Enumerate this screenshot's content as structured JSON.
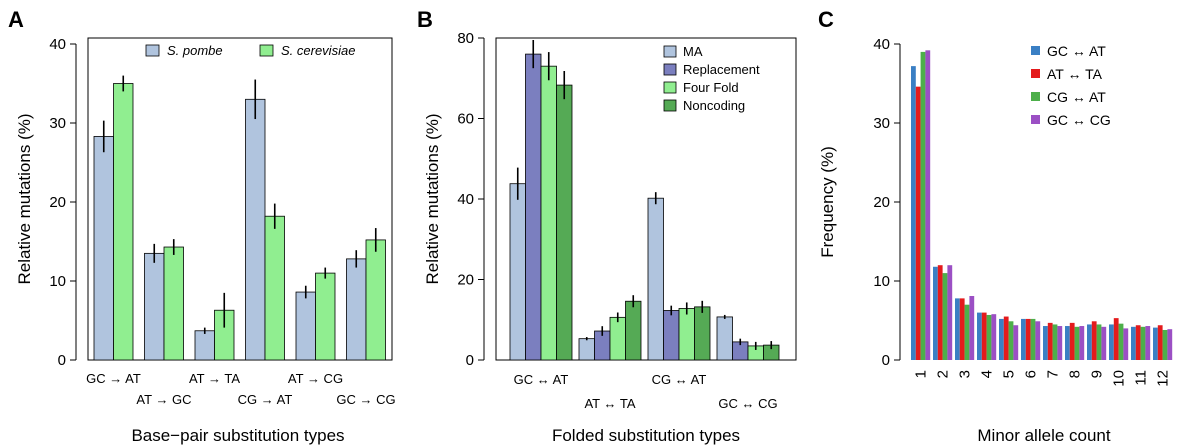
{
  "colors": {
    "s_pombe": "#b0c4de",
    "s_cerevisiae": "#90ee90",
    "ma": "#b0c4de",
    "replacement": "#7b7fbf",
    "four_fold": "#90ee90",
    "noncoding": "#55aa55",
    "gc_at": "#3a7fc4",
    "at_ta": "#e41a1c",
    "cg_at": "#4daf4a",
    "gc_cg": "#9b4fc4"
  },
  "chart_data": [
    {
      "panel": "A",
      "type": "bar",
      "xlabel": "Base−pair substitution types",
      "ylabel": "Relative mutations (%)",
      "ylim": [
        0,
        40
      ],
      "yticks": [
        "0",
        "10",
        "20",
        "30",
        "40"
      ],
      "categories": [
        "GC → AT",
        "AT → GC",
        "AT → TA",
        "CG → AT",
        "AT → CG",
        "GC → CG"
      ],
      "series": [
        {
          "name": "S. pombe",
          "values": [
            28.3,
            13.5,
            3.7,
            33.0,
            8.6,
            12.8
          ],
          "errors": [
            2.0,
            1.2,
            0.4,
            2.5,
            0.8,
            1.1
          ]
        },
        {
          "name": "S. cerevisiae",
          "values": [
            35.0,
            14.3,
            6.3,
            18.2,
            11.0,
            15.2
          ],
          "errors": [
            1.0,
            1.0,
            2.2,
            1.6,
            0.7,
            1.5
          ]
        }
      ],
      "legend": "top"
    },
    {
      "panel": "B",
      "type": "bar",
      "xlabel": "Folded substitution types",
      "ylabel": "Relative mutations (%)",
      "ylim": [
        0,
        80
      ],
      "yticks": [
        "0",
        "20",
        "40",
        "60",
        "80"
      ],
      "categories": [
        "GC ↔ AT",
        "AT ↔ TA",
        "CG ↔ AT",
        "GC ↔ CG"
      ],
      "series": [
        {
          "name": "MA",
          "values": [
            43.8,
            5.3,
            40.2,
            10.7
          ],
          "errors": [
            4.0,
            0.4,
            1.5,
            0.5
          ]
        },
        {
          "name": "Replacement",
          "values": [
            76.0,
            7.2,
            12.3,
            4.5
          ],
          "errors": [
            3.5,
            1.2,
            1.2,
            0.8
          ]
        },
        {
          "name": "Four Fold",
          "values": [
            73.0,
            10.6,
            12.8,
            3.5
          ],
          "errors": [
            3.5,
            1.2,
            1.5,
            1.0
          ]
        },
        {
          "name": "Noncoding",
          "values": [
            68.3,
            14.6,
            13.2,
            3.7
          ],
          "errors": [
            3.5,
            1.5,
            1.5,
            1.0
          ]
        }
      ],
      "legend": "top-right"
    },
    {
      "panel": "C",
      "type": "bar",
      "xlabel": "Minor allele count",
      "ylabel": "Frequency (%)",
      "ylim": [
        0,
        40
      ],
      "yticks": [
        "0",
        "10",
        "20",
        "30",
        "40"
      ],
      "categories": [
        "1",
        "2",
        "3",
        "4",
        "5",
        "6",
        "7",
        "8",
        "9",
        "10",
        "11",
        "12"
      ],
      "series": [
        {
          "name": "GC ↔ AT",
          "values": [
            37.2,
            11.8,
            7.8,
            6.0,
            5.2,
            5.2,
            4.3,
            4.3,
            4.5,
            4.5,
            4.2,
            4.1
          ]
        },
        {
          "name": "AT ↔ TA",
          "values": [
            34.6,
            12.0,
            7.8,
            6.0,
            5.5,
            5.2,
            4.7,
            4.7,
            4.9,
            5.3,
            4.4,
            4.4
          ]
        },
        {
          "name": "CG ↔ AT",
          "values": [
            39.0,
            11.0,
            7.0,
            5.7,
            4.9,
            5.2,
            4.5,
            4.2,
            4.5,
            4.6,
            4.2,
            3.8
          ]
        },
        {
          "name": "GC ↔ CG",
          "values": [
            39.2,
            12.0,
            8.1,
            5.8,
            4.4,
            4.9,
            4.3,
            4.3,
            4.2,
            4.0,
            4.3,
            3.9
          ]
        }
      ],
      "legend": "top-right"
    }
  ]
}
